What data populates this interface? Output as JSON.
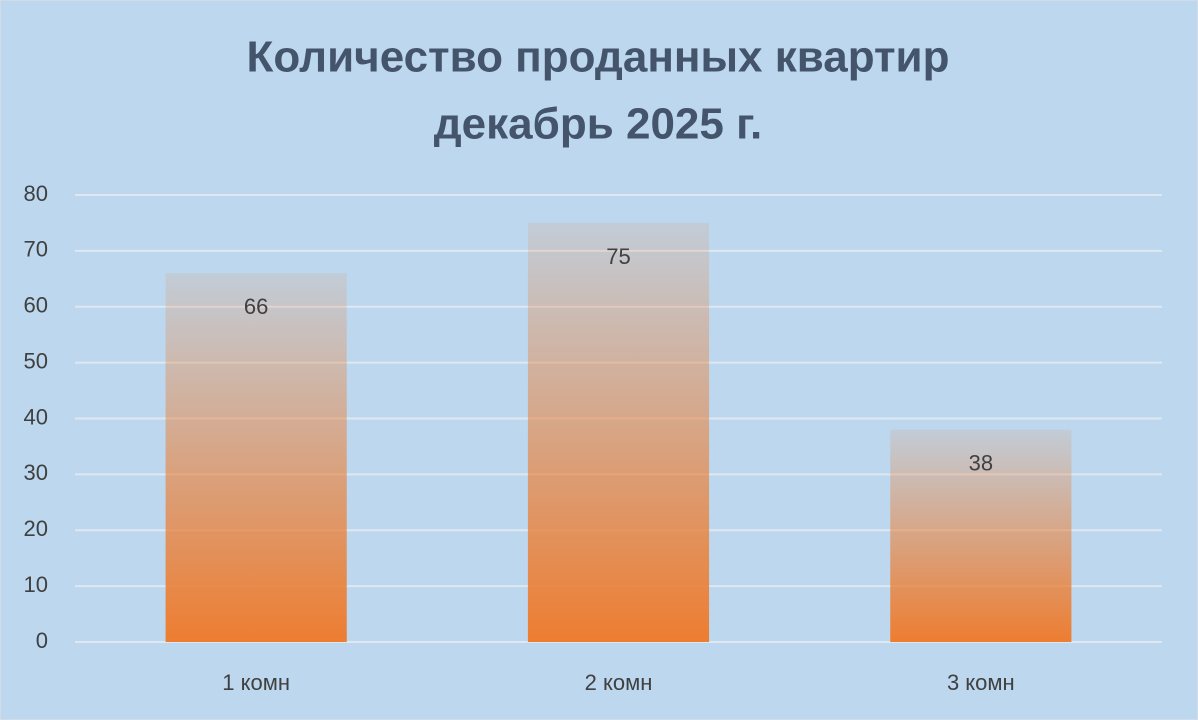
{
  "chart_data": {
    "type": "bar",
    "title": [
      "Количество проданных  квартир",
      "декабрь 2025 г."
    ],
    "categories": [
      "1 комн",
      "2 комн",
      "3 комн"
    ],
    "values": [
      66,
      75,
      38
    ],
    "color": "#ed7d31",
    "ylim": [
      0,
      80
    ],
    "yticks": [
      0,
      10,
      20,
      30,
      40,
      50,
      60,
      70,
      80
    ],
    "grid": true
  }
}
